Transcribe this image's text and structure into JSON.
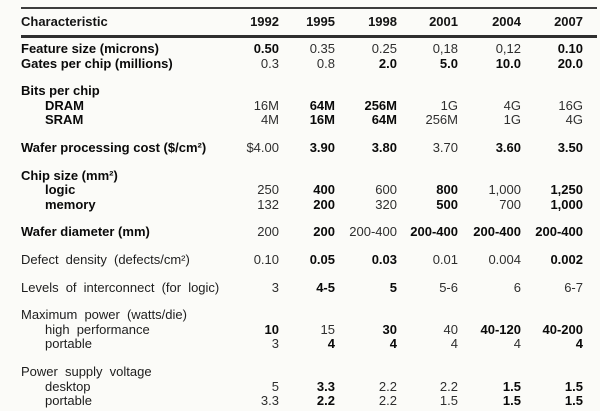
{
  "page": {
    "background": "#fbfbf8"
  },
  "colors": {
    "text": "#222222",
    "bold_text": "#0a0a0a",
    "rule": "#2f2f2f",
    "background": "#fbfbf8"
  },
  "table": {
    "header": [
      "Characteristic",
      "1992",
      "1995",
      "1998",
      "2001",
      "2004",
      "2007"
    ],
    "rows": [
      {
        "label": "Feature size (microns)",
        "bold_label": true,
        "values": [
          "0.50",
          "0.35",
          "0.25",
          "0,18",
          "0,12",
          "0.10"
        ],
        "bold": [
          true,
          false,
          false,
          false,
          false,
          true
        ]
      },
      {
        "label": "Gates per chip (millions)",
        "bold_label": true,
        "values": [
          "0.3",
          "0.8",
          "2.0",
          "5.0",
          "10.0",
          "20.0"
        ],
        "bold": [
          false,
          false,
          true,
          true,
          true,
          true
        ]
      },
      {
        "label": "Bits per chip",
        "bold_label": true,
        "group": true,
        "gap_before": true
      },
      {
        "label": "DRAM",
        "indent": 1,
        "bold_label": true,
        "values": [
          "16M",
          "64M",
          "256M",
          "1G",
          "4G",
          "16G"
        ],
        "bold": [
          false,
          true,
          true,
          false,
          false,
          false
        ]
      },
      {
        "label": "SRAM",
        "indent": 1,
        "bold_label": true,
        "values": [
          "4M",
          "16M",
          "64M",
          "256M",
          "1G",
          "4G"
        ],
        "bold": [
          false,
          true,
          true,
          false,
          false,
          false
        ]
      },
      {
        "label": "Wafer processing cost ($/cm²)",
        "bold_label": true,
        "gap_before": true,
        "values": [
          "$4.00",
          "3.90",
          "3.80",
          "3.70",
          "3.60",
          "3.50"
        ],
        "bold": [
          false,
          true,
          true,
          false,
          true,
          true
        ]
      },
      {
        "label": "Chip size (mm²)",
        "bold_label": true,
        "group": true,
        "gap_before": true
      },
      {
        "label": "logic",
        "indent": 1,
        "bold_label": true,
        "values": [
          "250",
          "400",
          "600",
          "800",
          "1,000",
          "1,250"
        ],
        "bold": [
          false,
          true,
          false,
          true,
          false,
          true
        ]
      },
      {
        "label": "memory",
        "indent": 1,
        "bold_label": true,
        "values": [
          "132",
          "200",
          "320",
          "500",
          "700",
          "1,000"
        ],
        "bold": [
          false,
          true,
          false,
          true,
          false,
          true
        ]
      },
      {
        "label": "Wafer diameter (mm)",
        "bold_label": true,
        "gap_before": true,
        "values": [
          "200",
          "200",
          "200-400",
          "200-400",
          "200-400",
          "200-400"
        ],
        "bold": [
          false,
          true,
          false,
          true,
          true,
          true
        ]
      },
      {
        "label": "Defect density (defects/cm²)",
        "wide": true,
        "gap_before": true,
        "values": [
          "0.10",
          "0.05",
          "0.03",
          "0.01",
          "0.004",
          "0.002"
        ],
        "bold": [
          false,
          true,
          true,
          false,
          false,
          true
        ]
      },
      {
        "label": "Levels of interconnect (for logic)",
        "wide": true,
        "gap_before": true,
        "values": [
          "3",
          "4-5",
          "5",
          "5-6",
          "6",
          "6-7"
        ],
        "bold": [
          false,
          true,
          true,
          false,
          false,
          false
        ]
      },
      {
        "label": "Maximum power (watts/die)",
        "wide": true,
        "group": true,
        "gap_before": true
      },
      {
        "label": "high performance",
        "indent": 1,
        "wide": true,
        "values": [
          "10",
          "15",
          "30",
          "40",
          "40-120",
          "40-200"
        ],
        "bold": [
          true,
          false,
          true,
          false,
          true,
          true
        ]
      },
      {
        "label": "portable",
        "indent": 1,
        "values": [
          "3",
          "4",
          "4",
          "4",
          "4",
          "4"
        ],
        "bold": [
          false,
          true,
          true,
          false,
          false,
          true
        ]
      },
      {
        "label": "Power supply voltage",
        "wide": true,
        "group": true,
        "gap_before": true
      },
      {
        "label": "desktop",
        "indent": 1,
        "values": [
          "5",
          "3.3",
          "2.2",
          "2.2",
          "1.5",
          "1.5"
        ],
        "bold": [
          false,
          true,
          false,
          false,
          true,
          true
        ]
      },
      {
        "label": "portable",
        "indent": 1,
        "values": [
          "3.3",
          "2.2",
          "2.2",
          "1.5",
          "1.5",
          "1.5"
        ],
        "bold": [
          false,
          true,
          false,
          false,
          true,
          true
        ]
      }
    ]
  }
}
